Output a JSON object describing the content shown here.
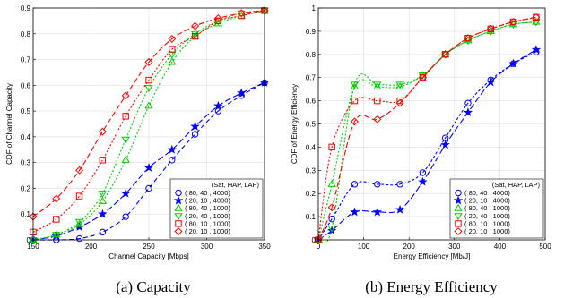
{
  "chart_data": [
    {
      "type": "line",
      "caption": "(a) Capacity",
      "xlabel": "Channel Capacity [Mbps]",
      "ylabel": "CDF of Channel Capacity",
      "xlim": [
        150,
        350
      ],
      "ylim": [
        0,
        0.9
      ],
      "xticks": [
        150,
        200,
        250,
        300,
        350
      ],
      "yticks": [
        0,
        0.1,
        0.2,
        0.3,
        0.4,
        0.5,
        0.6,
        0.7,
        0.8,
        0.9
      ],
      "grid": true,
      "legend_title": "(Sat, HAP,  LAP)",
      "legend_position": "bottom-right",
      "series": [
        {
          "name": "( 80,  40 , 4000)",
          "color": "#0000FF",
          "marker": "circle",
          "dash": "5,3",
          "x": [
            150,
            170,
            190,
            210,
            230,
            250,
            270,
            290,
            310,
            330,
            350
          ],
          "y": [
            0.0,
            0.0,
            0.005,
            0.03,
            0.09,
            0.2,
            0.31,
            0.41,
            0.5,
            0.56,
            0.61
          ]
        },
        {
          "name": "( 20,  10 , 4000)",
          "color": "#0000FF",
          "marker": "star",
          "dash": "7,3",
          "x": [
            150,
            170,
            190,
            210,
            230,
            250,
            270,
            290,
            310,
            330,
            350
          ],
          "y": [
            0.0,
            0.015,
            0.05,
            0.1,
            0.18,
            0.28,
            0.35,
            0.44,
            0.52,
            0.57,
            0.61
          ]
        },
        {
          "name": "( 80,  40 , 1000)",
          "color": "#00CC00",
          "marker": "triangle-up",
          "dash": "2,2",
          "x": [
            150,
            170,
            190,
            210,
            230,
            250,
            270,
            290,
            310,
            330,
            350
          ],
          "y": [
            0.0,
            0.02,
            0.06,
            0.15,
            0.31,
            0.52,
            0.69,
            0.79,
            0.84,
            0.87,
            0.89
          ]
        },
        {
          "name": "( 20,  40 , 1000)",
          "color": "#00CC00",
          "marker": "triangle-down",
          "dash": "2,2",
          "x": [
            150,
            170,
            190,
            210,
            230,
            250,
            270,
            290,
            310,
            330,
            350
          ],
          "y": [
            0.0,
            0.02,
            0.07,
            0.18,
            0.39,
            0.59,
            0.72,
            0.8,
            0.85,
            0.88,
            0.89
          ]
        },
        {
          "name": "( 80,  10 , 1000)",
          "color": "#FF0000",
          "marker": "square",
          "dash": "2,2",
          "x": [
            150,
            170,
            190,
            210,
            230,
            250,
            270,
            290,
            310,
            330,
            350
          ],
          "y": [
            0.03,
            0.08,
            0.17,
            0.31,
            0.48,
            0.62,
            0.74,
            0.79,
            0.85,
            0.87,
            0.89
          ]
        },
        {
          "name": "( 20,  10 , 1000)",
          "color": "#FF0000",
          "marker": "diamond",
          "dash": "6,3",
          "x": [
            150,
            170,
            190,
            210,
            230,
            250,
            270,
            290,
            310,
            330,
            350
          ],
          "y": [
            0.09,
            0.16,
            0.27,
            0.42,
            0.56,
            0.69,
            0.78,
            0.83,
            0.86,
            0.88,
            0.89
          ]
        }
      ]
    },
    {
      "type": "line",
      "caption": "(b) Energy Efficiency",
      "xlabel": "Energy Efficiency [Mb/J]",
      "ylabel": "CDF of Energy Efficiency",
      "xlim": [
        0,
        500
      ],
      "ylim": [
        0,
        1
      ],
      "xticks": [
        0,
        100,
        200,
        300,
        400,
        500
      ],
      "yticks": [
        0,
        0.1,
        0.2,
        0.3,
        0.4,
        0.5,
        0.6,
        0.7,
        0.8,
        0.9,
        1
      ],
      "grid": true,
      "legend_title": "(Sat, HAP,  LAP)",
      "legend_position": "bottom-right",
      "series": [
        {
          "name": "( 80,  40 , 4000)",
          "color": "#0000FF",
          "marker": "circle",
          "dash": "3,2",
          "x": [
            0,
            30,
            80,
            130,
            180,
            230,
            280,
            330,
            380,
            430,
            480
          ],
          "y": [
            0.0,
            0.09,
            0.24,
            0.24,
            0.24,
            0.29,
            0.44,
            0.59,
            0.69,
            0.76,
            0.81
          ]
        },
        {
          "name": "( 20,  10 , 4000)",
          "color": "#0000FF",
          "marker": "star",
          "dash": "7,3",
          "x": [
            0,
            30,
            80,
            130,
            180,
            230,
            280,
            330,
            380,
            430,
            480
          ],
          "y": [
            0.0,
            0.04,
            0.12,
            0.12,
            0.13,
            0.25,
            0.41,
            0.55,
            0.68,
            0.76,
            0.82
          ]
        },
        {
          "name": "( 80,  40 , 1000)",
          "color": "#00CC00",
          "marker": "triangle-up",
          "dash": "2,2",
          "x": [
            0,
            30,
            80,
            130,
            180,
            230,
            280,
            330,
            380,
            430,
            480
          ],
          "y": [
            0.0,
            0.24,
            0.66,
            0.66,
            0.66,
            0.71,
            0.8,
            0.86,
            0.9,
            0.93,
            0.94
          ]
        },
        {
          "name": "( 20,  40 , 1000)",
          "color": "#00CC00",
          "marker": "triangle-down",
          "dash": "2,2",
          "x": [
            0,
            30,
            80,
            130,
            180,
            230,
            280,
            330,
            380,
            430,
            480
          ],
          "y": [
            0.0,
            0.05,
            0.67,
            0.67,
            0.67,
            0.71,
            0.8,
            0.86,
            0.9,
            0.93,
            0.94
          ]
        },
        {
          "name": "( 80,  10 , 1000)",
          "color": "#FF0000",
          "marker": "square",
          "dash": "2,2",
          "x": [
            0,
            30,
            80,
            130,
            180,
            230,
            280,
            330,
            380,
            430,
            480
          ],
          "y": [
            0.0,
            0.4,
            0.6,
            0.6,
            0.6,
            0.7,
            0.8,
            0.87,
            0.91,
            0.94,
            0.96
          ]
        },
        {
          "name": "( 20,  10 , 1000)",
          "color": "#FF0000",
          "marker": "diamond",
          "dash": "6,3",
          "x": [
            0,
            30,
            80,
            130,
            180,
            230,
            280,
            330,
            380,
            430,
            480
          ],
          "y": [
            0.0,
            0.14,
            0.51,
            0.52,
            0.59,
            0.7,
            0.8,
            0.87,
            0.91,
            0.94,
            0.96
          ]
        }
      ]
    }
  ]
}
